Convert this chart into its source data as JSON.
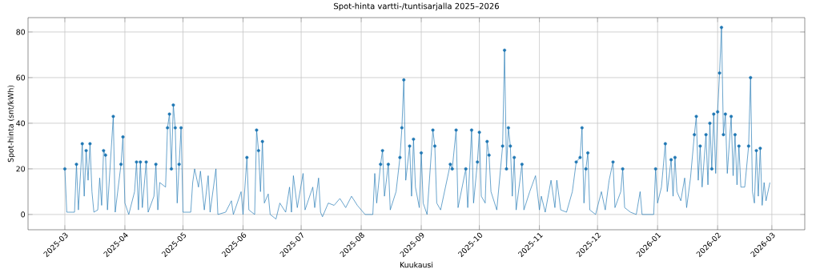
{
  "chart_data": {
    "type": "line",
    "title": "Spot-hinta vartti-/tuntisarjalla 2025–2026",
    "xlabel": "Kuukausi",
    "ylabel": "Spot-hinta (snt/kWh)",
    "grid": true,
    "xlim": [
      "2025-02-10",
      "2026-03-18"
    ],
    "ylim": [
      -6.7,
      86.3
    ],
    "xticks": [
      "2025-03",
      "2025-04",
      "2025-05",
      "2025-06",
      "2025-07",
      "2025-08",
      "2025-09",
      "2025-10",
      "2025-11",
      "2025-12",
      "2026-01",
      "2026-02",
      "2026-03"
    ],
    "yticks": [
      0,
      20,
      40,
      60,
      80
    ],
    "series": [
      {
        "color": "#1f77b4",
        "marker": "none",
        "x": [
          "2025-03-01",
          "2025-03-02",
          "2025-03-06",
          "2025-03-07",
          "2025-03-08",
          "2025-03-10",
          "2025-03-11",
          "2025-03-12",
          "2025-03-13",
          "2025-03-14",
          "2025-03-15",
          "2025-03-16",
          "2025-03-18",
          "2025-03-19",
          "2025-03-20",
          "2025-03-21",
          "2025-03-22",
          "2025-03-23",
          "2025-03-26",
          "2025-03-27",
          "2025-03-30",
          "2025-03-31",
          "2025-04-01",
          "2025-04-03",
          "2025-04-06",
          "2025-04-07",
          "2025-04-08",
          "2025-04-09",
          "2025-04-10",
          "2025-04-12",
          "2025-04-13",
          "2025-04-16",
          "2025-04-17",
          "2025-04-18",
          "2025-04-19",
          "2025-04-22",
          "2025-04-23",
          "2025-04-24",
          "2025-04-25",
          "2025-04-26",
          "2025-04-27",
          "2025-04-28",
          "2025-04-29",
          "2025-04-30",
          "2025-05-01",
          "2025-05-05",
          "2025-05-06",
          "2025-05-07",
          "2025-05-09",
          "2025-05-10",
          "2025-05-12",
          "2025-05-14",
          "2025-05-15",
          "2025-05-18",
          "2025-05-19",
          "2025-05-23",
          "2025-05-26",
          "2025-05-27",
          "2025-05-31",
          "2025-06-01",
          "2025-06-03",
          "2025-06-04",
          "2025-06-07",
          "2025-06-08",
          "2025-06-09",
          "2025-06-10",
          "2025-06-11",
          "2025-06-12",
          "2025-06-14",
          "2025-06-15",
          "2025-06-18",
          "2025-06-20",
          "2025-06-23",
          "2025-06-25",
          "2025-06-26",
          "2025-06-27",
          "2025-06-29",
          "2025-07-02",
          "2025-07-03",
          "2025-07-07",
          "2025-07-08",
          "2025-07-10",
          "2025-07-11",
          "2025-07-12",
          "2025-07-15",
          "2025-07-18",
          "2025-07-21",
          "2025-07-24",
          "2025-07-27",
          "2025-07-30",
          "2025-08-01",
          "2025-08-03",
          "2025-08-07",
          "2025-08-08",
          "2025-08-09",
          "2025-08-11",
          "2025-08-12",
          "2025-08-13",
          "2025-08-15",
          "2025-08-16",
          "2025-08-19",
          "2025-08-21",
          "2025-08-22",
          "2025-08-23",
          "2025-08-24",
          "2025-08-26",
          "2025-08-27",
          "2025-08-28",
          "2025-08-29",
          "2025-08-31",
          "2025-09-01",
          "2025-09-02",
          "2025-09-04",
          "2025-09-07",
          "2025-09-08",
          "2025-09-09",
          "2025-09-11",
          "2025-09-16",
          "2025-09-17",
          "2025-09-19",
          "2025-09-20",
          "2025-09-24",
          "2025-09-25",
          "2025-09-27",
          "2025-09-28",
          "2025-09-30",
          "2025-10-01",
          "2025-10-02",
          "2025-10-04",
          "2025-10-05",
          "2025-10-06",
          "2025-10-07",
          "2025-10-10",
          "2025-10-13",
          "2025-10-14",
          "2025-10-15",
          "2025-10-16",
          "2025-10-17",
          "2025-10-18",
          "2025-10-19",
          "2025-10-20",
          "2025-10-23",
          "2025-10-24",
          "2025-10-27",
          "2025-10-30",
          "2025-11-01",
          "2025-11-02",
          "2025-11-04",
          "2025-11-07",
          "2025-11-09",
          "2025-11-10",
          "2025-11-12",
          "2025-11-15",
          "2025-11-18",
          "2025-11-20",
          "2025-11-22",
          "2025-11-23",
          "2025-11-24",
          "2025-11-25",
          "2025-11-26",
          "2025-11-27",
          "2025-11-30",
          "2025-12-03",
          "2025-12-05",
          "2025-12-07",
          "2025-12-09",
          "2025-12-10",
          "2025-12-13",
          "2025-12-14",
          "2025-12-15",
          "2025-12-18",
          "2025-12-21",
          "2025-12-23",
          "2025-12-24",
          "2025-12-30",
          "2025-12-31",
          "2026-01-01",
          "2026-01-03",
          "2026-01-05",
          "2026-01-06",
          "2026-01-08",
          "2026-01-09",
          "2026-01-10",
          "2026-01-11",
          "2026-01-13",
          "2026-01-15",
          "2026-01-16",
          "2026-01-18",
          "2026-01-20",
          "2026-01-21",
          "2026-01-22",
          "2026-01-23",
          "2026-01-24",
          "2026-01-26",
          "2026-01-27",
          "2026-01-28",
          "2026-01-29",
          "2026-01-30",
          "2026-01-31",
          "2026-02-01",
          "2026-02-02",
          "2026-02-03",
          "2026-02-04",
          "2026-02-05",
          "2026-02-06",
          "2026-02-08",
          "2026-02-09",
          "2026-02-10",
          "2026-02-11",
          "2026-02-12",
          "2026-02-13",
          "2026-02-15",
          "2026-02-17",
          "2026-02-18",
          "2026-02-19",
          "2026-02-20",
          "2026-02-21",
          "2026-02-22",
          "2026-02-23",
          "2026-02-24",
          "2026-02-25",
          "2026-02-26",
          "2026-02-28"
        ],
        "values": [
          20,
          1,
          1,
          22,
          2,
          31,
          8,
          28,
          15,
          31,
          10,
          1,
          2,
          16,
          4,
          28,
          26,
          2,
          43,
          1,
          22,
          34,
          5,
          0,
          10,
          23,
          2,
          23,
          3,
          23,
          1,
          8,
          22,
          2,
          14,
          12,
          38,
          44,
          20,
          48,
          38,
          5,
          22,
          38,
          1,
          1,
          14,
          20,
          12,
          19,
          2,
          17,
          1,
          20,
          0,
          1,
          6,
          0,
          10,
          0,
          25,
          2,
          0,
          37,
          28,
          10,
          32,
          5,
          9,
          0,
          -2,
          5,
          1,
          12,
          1,
          17,
          3,
          18,
          2,
          12,
          3,
          16,
          1,
          -1,
          5,
          4,
          7,
          3,
          8,
          4,
          2,
          0,
          0,
          18,
          5,
          22,
          28,
          8,
          22,
          2,
          10,
          25,
          38,
          59,
          15,
          30,
          8,
          33,
          12,
          3,
          27,
          5,
          0,
          37,
          30,
          5,
          2,
          22,
          20,
          37,
          3,
          20,
          3,
          37,
          5,
          23,
          36,
          8,
          5,
          32,
          26,
          10,
          2,
          30,
          72,
          20,
          38,
          30,
          8,
          25,
          2,
          22,
          2,
          10,
          17,
          2,
          8,
          1,
          15,
          3,
          15,
          2,
          1,
          10,
          23,
          25,
          38,
          5,
          20,
          27,
          2,
          0,
          10,
          2,
          15,
          23,
          3,
          10,
          20,
          3,
          1,
          0,
          10,
          0,
          0,
          20,
          5,
          12,
          31,
          10,
          24,
          8,
          25,
          10,
          6,
          16,
          3,
          16,
          35,
          43,
          15,
          30,
          12,
          35,
          13,
          40,
          20,
          44,
          18,
          45,
          62,
          82,
          35,
          44,
          18,
          43,
          17,
          35,
          13,
          30,
          12,
          12,
          30,
          60,
          10,
          5,
          28,
          8,
          29,
          4,
          14,
          6,
          14
        ]
      },
      {
        "type": "scatter",
        "color": "#1f77b4",
        "marker": "circle",
        "x": [
          "2025-03-01",
          "2025-03-07",
          "2025-03-10",
          "2025-03-12",
          "2025-03-14",
          "2025-03-21",
          "2025-03-22",
          "2025-03-26",
          "2025-03-30",
          "2025-03-31",
          "2025-04-07",
          "2025-04-09",
          "2025-04-12",
          "2025-04-17",
          "2025-04-23",
          "2025-04-24",
          "2025-04-25",
          "2025-04-26",
          "2025-04-27",
          "2025-04-29",
          "2025-04-30",
          "2025-06-03",
          "2025-06-08",
          "2025-06-09",
          "2025-06-11",
          "2025-08-11",
          "2025-08-12",
          "2025-08-15",
          "2025-08-21",
          "2025-08-22",
          "2025-08-23",
          "2025-08-26",
          "2025-08-28",
          "2025-09-01",
          "2025-09-07",
          "2025-09-08",
          "2025-09-16",
          "2025-09-17",
          "2025-09-19",
          "2025-09-24",
          "2025-09-27",
          "2025-09-30",
          "2025-10-01",
          "2025-10-05",
          "2025-10-06",
          "2025-10-13",
          "2025-10-14",
          "2025-10-15",
          "2025-10-16",
          "2025-10-17",
          "2025-10-19",
          "2025-10-23",
          "2025-11-20",
          "2025-11-22",
          "2025-11-23",
          "2025-11-25",
          "2025-11-26",
          "2025-12-09",
          "2025-12-14",
          "2025-12-31",
          "2026-01-05",
          "2026-01-08",
          "2026-01-10",
          "2026-01-20",
          "2026-01-21",
          "2026-01-23",
          "2026-01-26",
          "2026-01-28",
          "2026-01-29",
          "2026-01-30",
          "2026-02-01",
          "2026-02-02",
          "2026-02-03",
          "2026-02-04",
          "2026-02-05",
          "2026-02-08",
          "2026-02-10",
          "2026-02-12",
          "2026-02-17",
          "2026-02-18",
          "2026-02-21",
          "2026-02-23"
        ],
        "values": [
          20,
          22,
          31,
          28,
          31,
          28,
          26,
          43,
          22,
          34,
          23,
          23,
          23,
          22,
          38,
          44,
          20,
          48,
          38,
          22,
          38,
          25,
          37,
          28,
          32,
          22,
          28,
          22,
          25,
          38,
          59,
          30,
          33,
          27,
          37,
          30,
          22,
          20,
          37,
          20,
          37,
          23,
          36,
          32,
          26,
          30,
          72,
          20,
          38,
          30,
          25,
          22,
          23,
          25,
          38,
          20,
          27,
          23,
          20,
          20,
          31,
          24,
          25,
          35,
          43,
          30,
          35,
          40,
          20,
          44,
          45,
          62,
          82,
          35,
          44,
          43,
          35,
          30,
          30,
          60,
          28,
          29
        ]
      }
    ]
  }
}
